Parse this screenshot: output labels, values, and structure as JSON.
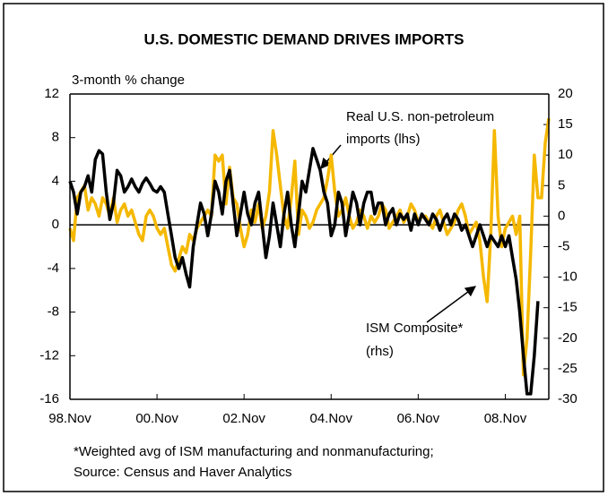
{
  "chart_data": {
    "type": "line",
    "title": "U.S. DOMESTIC DEMAND DRIVES IMPORTS",
    "y_label": "3-month % change",
    "categories": [
      "98.Nov",
      null,
      null,
      null,
      null,
      null,
      null,
      null,
      null,
      null,
      null,
      null,
      null,
      null,
      null,
      null,
      null,
      null,
      null,
      null,
      null,
      null,
      null,
      null,
      "00.Nov",
      null,
      null,
      null,
      null,
      null,
      null,
      null,
      null,
      null,
      null,
      null,
      null,
      null,
      null,
      null,
      null,
      null,
      null,
      null,
      null,
      null,
      null,
      null,
      "02.Nov",
      null,
      null,
      null,
      null,
      null,
      null,
      null,
      null,
      null,
      null,
      null,
      null,
      null,
      null,
      null,
      null,
      null,
      null,
      null,
      null,
      null,
      null,
      null,
      "04.Nov",
      null,
      null,
      null,
      null,
      null,
      null,
      null,
      null,
      null,
      null,
      null,
      null,
      null,
      null,
      null,
      null,
      null,
      null,
      null,
      null,
      null,
      null,
      null,
      "06.Nov",
      null,
      null,
      null,
      null,
      null,
      null,
      null,
      null,
      null,
      null,
      null,
      null,
      null,
      null,
      null,
      null,
      null,
      null,
      null,
      null,
      null,
      null,
      null,
      "08.Nov",
      null,
      null,
      null,
      null,
      null,
      null,
      null,
      null,
      null,
      null,
      null,
      null
    ],
    "series": [
      {
        "name": "Real U.S. non-petroleum imports (lhs)",
        "color": "#000000",
        "axis": "y",
        "values": [
          4,
          3,
          1,
          3,
          3.5,
          4.5,
          3,
          6,
          6.8,
          6.5,
          3,
          0.5,
          2,
          5,
          4.5,
          3,
          3.5,
          4.2,
          3.5,
          3,
          3.8,
          4.3,
          3.8,
          3.2,
          3,
          3.5,
          3,
          1,
          -1,
          -3,
          -4,
          -3,
          -4.5,
          -5.7,
          -2,
          0,
          2,
          1,
          -1,
          1,
          4,
          3,
          1,
          4,
          5,
          2,
          -1,
          1,
          3,
          1,
          0,
          2,
          3,
          0,
          -3,
          -1,
          2,
          0,
          -2,
          1,
          3,
          0,
          -2,
          1,
          4,
          3,
          5,
          7,
          6,
          5,
          3,
          2,
          -1,
          0,
          3,
          2,
          -1,
          1,
          3,
          2,
          0,
          2,
          3,
          3,
          1,
          2,
          2,
          0,
          1,
          1.5,
          0,
          1,
          0.5,
          1,
          -0.5,
          1,
          0,
          1,
          0.5,
          0,
          1,
          0.5,
          -0.5,
          0.5,
          1,
          0,
          1,
          0.5,
          -0.5,
          0,
          -1,
          -2,
          -1,
          0,
          -1,
          -2,
          -1,
          -1.5,
          -2,
          -1,
          -2,
          -1,
          -3,
          -5,
          -8,
          -12,
          -15.5,
          -15.5,
          -12,
          -7,
          null,
          null,
          null
        ]
      },
      {
        "name": "ISM Composite* (rhs)",
        "color": "#f5b800",
        "axis": "y2",
        "values": [
          -2,
          -4,
          3,
          4,
          5,
          1,
          3,
          2,
          0,
          3,
          2,
          0,
          3,
          -1,
          1,
          2,
          0,
          1,
          -1,
          -3,
          -4,
          0,
          1,
          0,
          -2,
          -3,
          -2,
          -5,
          -8,
          -9,
          -7,
          -5,
          -6,
          -3,
          -4,
          -2,
          -1,
          0,
          1,
          0,
          10,
          9,
          10,
          2,
          8,
          3,
          2,
          -2,
          -5,
          -3,
          1,
          -1,
          2,
          -2,
          0,
          4,
          14,
          10,
          5,
          0,
          -2,
          3,
          9,
          -3,
          1,
          0,
          -2,
          -1,
          1,
          2,
          3,
          6,
          10,
          4,
          0,
          1,
          3,
          0,
          -2,
          -1,
          1,
          0,
          -2,
          0,
          -1,
          0,
          2,
          1,
          -2,
          -1,
          0,
          1,
          -1,
          0,
          2,
          1,
          -1,
          0,
          0,
          -1,
          -2,
          0,
          1,
          -1,
          -3,
          -2,
          -1,
          1,
          2,
          0,
          -3,
          -2,
          -1,
          -4,
          -10,
          -14,
          -3,
          14,
          0,
          -5,
          -2,
          -1,
          0,
          -3,
          0,
          -26,
          -20,
          -6,
          10,
          3,
          3,
          12,
          16
        ]
      }
    ],
    "ylim": [
      -16,
      12
    ],
    "yticks": [
      -16,
      -12,
      -8,
      -4,
      0,
      4,
      8,
      12
    ],
    "y2lim": [
      -30,
      20
    ],
    "y2ticks": [
      -30,
      -25,
      -20,
      -15,
      -10,
      -5,
      0,
      5,
      10,
      15,
      20
    ],
    "annotations": [
      [
        "Real U.S. non-petroleum",
        "imports (lhs)"
      ],
      [
        "ISM Composite*",
        "(rhs)"
      ]
    ],
    "footnote": [
      "*Weighted avg of ISM manufacturing and nonmanufacturing;",
      "Source: Census and Haver Analytics"
    ]
  }
}
